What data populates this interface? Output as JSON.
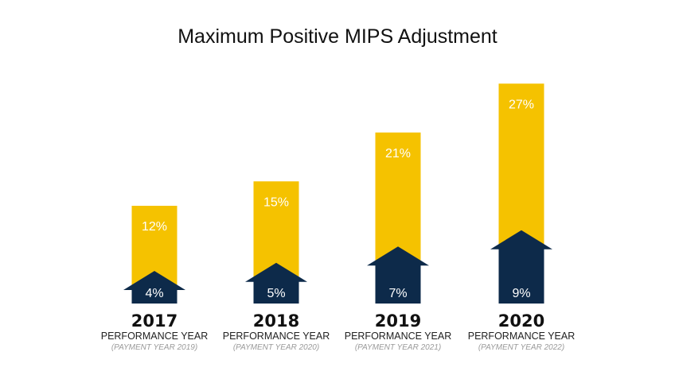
{
  "title": "Maximum Positive MIPS Adjustment",
  "colors": {
    "max_bar": "#F5C200",
    "base_arrow": "#0D2A4A",
    "label_text": "#FFFFFF"
  },
  "chart_data": {
    "type": "bar",
    "title": "Maximum Positive MIPS Adjustment",
    "categories": [
      "2017",
      "2018",
      "2019",
      "2020"
    ],
    "series": [
      {
        "values": [
          12,
          15,
          21,
          27
        ],
        "labels": [
          "12%",
          "15%",
          "21%",
          "27%"
        ],
        "color": "#F5C200"
      },
      {
        "values": [
          4,
          5,
          7,
          9
        ],
        "labels": [
          "4%",
          "5%",
          "7%",
          "9%"
        ],
        "color": "#0D2A4A",
        "marker": "up-arrow"
      }
    ],
    "sublabels": [
      {
        "line1": "PERFORMANCE YEAR",
        "line2": "(PAYMENT YEAR 2019)"
      },
      {
        "line1": "PERFORMANCE YEAR",
        "line2": "(PAYMENT YEAR 2020)"
      },
      {
        "line1": "PERFORMANCE YEAR",
        "line2": "(PAYMENT YEAR 2021)"
      },
      {
        "line1": "PERFORMANCE YEAR",
        "line2": "(PAYMENT YEAR 2022)"
      }
    ],
    "grid": false,
    "legend": "none"
  }
}
